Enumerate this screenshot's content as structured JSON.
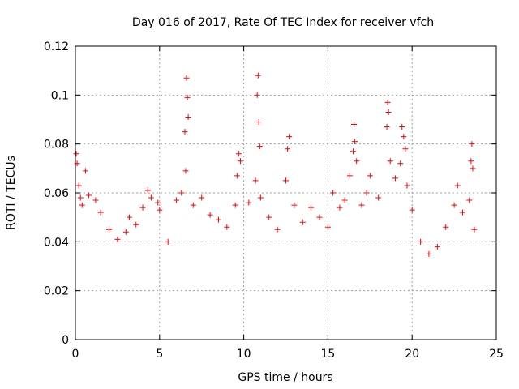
{
  "chart_data": {
    "type": "scatter",
    "title": "Day 016 of 2017, Rate Of TEC Index for receiver vfch",
    "xlabel": "GPS time / hours",
    "ylabel": "ROTI / TECUs",
    "xlim": [
      0,
      25
    ],
    "ylim": [
      0,
      0.12
    ],
    "x_ticks": [
      {
        "value": 0,
        "label": "0"
      },
      {
        "value": 5,
        "label": "5"
      },
      {
        "value": 10,
        "label": "10"
      },
      {
        "value": 15,
        "label": "15"
      },
      {
        "value": 20,
        "label": "20"
      },
      {
        "value": 25,
        "label": "25"
      }
    ],
    "y_ticks": [
      {
        "value": 0,
        "label": "0"
      },
      {
        "value": 0.02,
        "label": "0.02"
      },
      {
        "value": 0.04,
        "label": "0.04"
      },
      {
        "value": 0.06,
        "label": "0.06"
      },
      {
        "value": 0.08,
        "label": "0.08"
      },
      {
        "value": 0.1,
        "label": "0.1"
      },
      {
        "value": 0.12,
        "label": "0.12"
      }
    ],
    "grid": true,
    "marker": "+",
    "series": [
      {
        "name": "ROTI",
        "color": "#ff0000",
        "points": [
          [
            0.05,
            0.076
          ],
          [
            0.1,
            0.072
          ],
          [
            0.2,
            0.063
          ],
          [
            0.3,
            0.058
          ],
          [
            0.4,
            0.055
          ],
          [
            0.6,
            0.069
          ],
          [
            0.8,
            0.059
          ],
          [
            1.2,
            0.057
          ],
          [
            1.5,
            0.052
          ],
          [
            2.0,
            0.045
          ],
          [
            2.5,
            0.041
          ],
          [
            3.0,
            0.044
          ],
          [
            3.2,
            0.05
          ],
          [
            3.6,
            0.047
          ],
          [
            4.0,
            0.054
          ],
          [
            4.3,
            0.061
          ],
          [
            4.5,
            0.058
          ],
          [
            4.9,
            0.056
          ],
          [
            5.0,
            0.053
          ],
          [
            5.5,
            0.04
          ],
          [
            6.0,
            0.057
          ],
          [
            6.3,
            0.06
          ],
          [
            6.5,
            0.085
          ],
          [
            6.6,
            0.107
          ],
          [
            6.65,
            0.099
          ],
          [
            6.7,
            0.091
          ],
          [
            6.55,
            0.069
          ],
          [
            7.0,
            0.055
          ],
          [
            7.5,
            0.058
          ],
          [
            8.0,
            0.051
          ],
          [
            8.5,
            0.049
          ],
          [
            9.0,
            0.046
          ],
          [
            9.5,
            0.055
          ],
          [
            9.6,
            0.067
          ],
          [
            9.7,
            0.076
          ],
          [
            9.8,
            0.073
          ],
          [
            10.3,
            0.056
          ],
          [
            10.7,
            0.065
          ],
          [
            10.8,
            0.1
          ],
          [
            10.85,
            0.108
          ],
          [
            10.9,
            0.089
          ],
          [
            10.95,
            0.079
          ],
          [
            11.0,
            0.058
          ],
          [
            11.5,
            0.05
          ],
          [
            12.0,
            0.045
          ],
          [
            12.5,
            0.065
          ],
          [
            12.6,
            0.078
          ],
          [
            12.7,
            0.083
          ],
          [
            13.0,
            0.055
          ],
          [
            13.5,
            0.048
          ],
          [
            14.0,
            0.054
          ],
          [
            14.5,
            0.05
          ],
          [
            15.0,
            0.046
          ],
          [
            15.3,
            0.06
          ],
          [
            15.7,
            0.054
          ],
          [
            16.0,
            0.057
          ],
          [
            16.3,
            0.067
          ],
          [
            16.5,
            0.077
          ],
          [
            16.55,
            0.088
          ],
          [
            16.6,
            0.081
          ],
          [
            16.7,
            0.073
          ],
          [
            17.0,
            0.055
          ],
          [
            17.3,
            0.06
          ],
          [
            17.5,
            0.067
          ],
          [
            18.0,
            0.058
          ],
          [
            18.5,
            0.087
          ],
          [
            18.55,
            0.097
          ],
          [
            18.6,
            0.093
          ],
          [
            18.7,
            0.073
          ],
          [
            19.0,
            0.066
          ],
          [
            19.3,
            0.072
          ],
          [
            19.4,
            0.087
          ],
          [
            19.5,
            0.083
          ],
          [
            19.6,
            0.078
          ],
          [
            19.7,
            0.063
          ],
          [
            20.0,
            0.053
          ],
          [
            20.5,
            0.04
          ],
          [
            21.0,
            0.035
          ],
          [
            21.5,
            0.038
          ],
          [
            22.0,
            0.046
          ],
          [
            22.5,
            0.055
          ],
          [
            22.7,
            0.063
          ],
          [
            23.0,
            0.052
          ],
          [
            23.4,
            0.057
          ],
          [
            23.5,
            0.073
          ],
          [
            23.55,
            0.08
          ],
          [
            23.6,
            0.07
          ],
          [
            23.7,
            0.045
          ]
        ]
      }
    ]
  }
}
